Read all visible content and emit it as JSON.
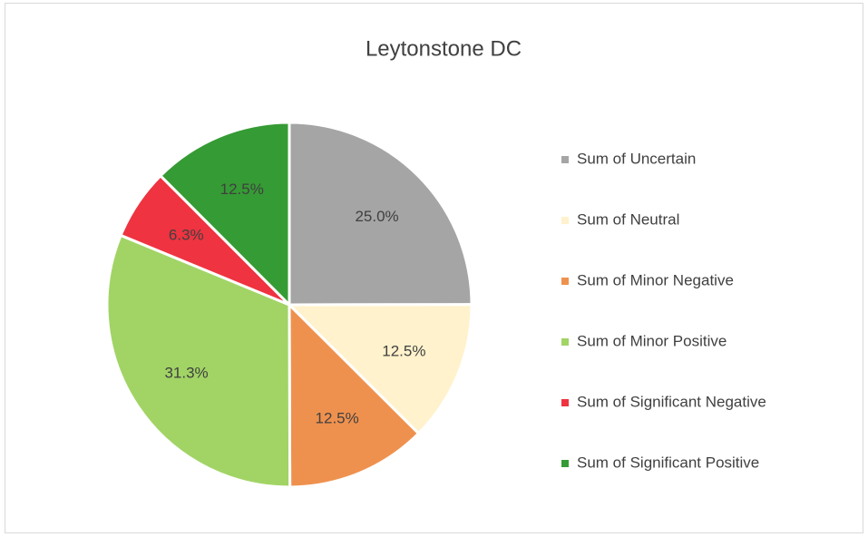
{
  "chart_data": {
    "type": "pie",
    "title": "Leytonstone DC",
    "categories": [
      "Sum of Uncertain",
      "Sum of Neutral",
      "Sum of Minor Negative",
      "Sum of Minor Positive",
      "Sum of Significant Negative",
      "Sum of Significant Positive"
    ],
    "values": [
      25,
      12.5,
      12.5,
      31.3,
      6.3,
      12.5
    ],
    "value_labels": [
      "25.0%",
      "12.5%",
      "12.5%",
      "31.3%",
      "6.3%",
      "12.5%"
    ],
    "colors": [
      "#a5a5a5",
      "#fff2cc",
      "#ef914e",
      "#a1d465",
      "#ef3340",
      "#359b34"
    ],
    "legend": "right"
  }
}
